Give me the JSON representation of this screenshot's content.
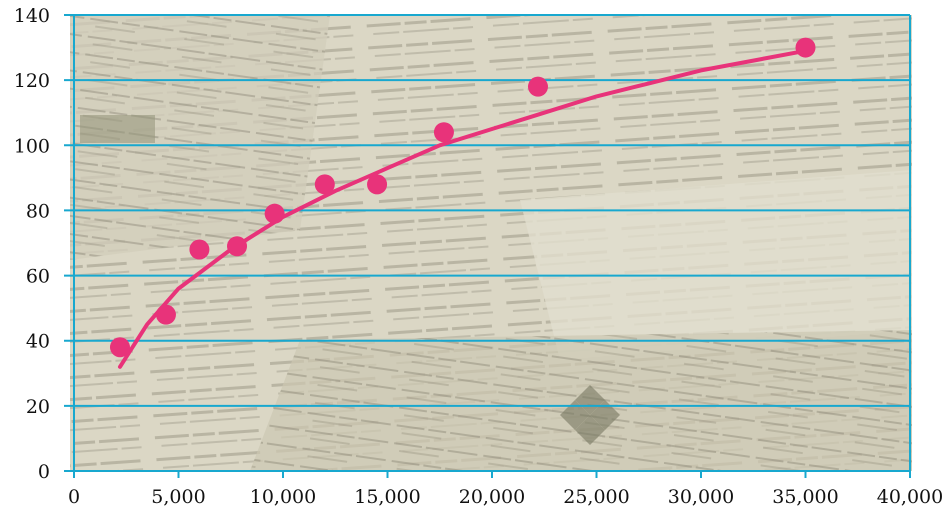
{
  "chart_data": {
    "type": "scatter",
    "title": "",
    "xlabel": "",
    "ylabel": "",
    "x_ticks": [
      "0",
      "5,000",
      "10,000",
      "15,000",
      "20,000",
      "25,000",
      "30,000",
      "35,000",
      "40,000"
    ],
    "y_ticks": [
      "0",
      "20",
      "40",
      "60",
      "80",
      "100",
      "120",
      "140"
    ],
    "xlim": [
      0,
      40000
    ],
    "ylim": [
      0,
      140
    ],
    "grid": "horizontal",
    "background": "collage of torn Hebrew newspaper clippings",
    "series": [
      {
        "type": "scatter",
        "color": "#e8337a",
        "points": [
          {
            "x": 2200,
            "y": 38
          },
          {
            "x": 4400,
            "y": 48
          },
          {
            "x": 6000,
            "y": 68
          },
          {
            "x": 7800,
            "y": 69
          },
          {
            "x": 9600,
            "y": 79
          },
          {
            "x": 12000,
            "y": 88
          },
          {
            "x": 14500,
            "y": 88
          },
          {
            "x": 17700,
            "y": 104
          },
          {
            "x": 22200,
            "y": 118
          },
          {
            "x": 35000,
            "y": 130
          }
        ]
      },
      {
        "type": "trendline",
        "color": "#e8337a",
        "model": "logarithmic",
        "points": [
          {
            "x": 2200,
            "y": 32
          },
          {
            "x": 3500,
            "y": 45
          },
          {
            "x": 5000,
            "y": 56
          },
          {
            "x": 7500,
            "y": 68
          },
          {
            "x": 10000,
            "y": 78
          },
          {
            "x": 12500,
            "y": 86
          },
          {
            "x": 15000,
            "y": 93
          },
          {
            "x": 17500,
            "y": 100
          },
          {
            "x": 20000,
            "y": 105
          },
          {
            "x": 22500,
            "y": 110
          },
          {
            "x": 25000,
            "y": 115
          },
          {
            "x": 27500,
            "y": 119
          },
          {
            "x": 30000,
            "y": 123
          },
          {
            "x": 32500,
            "y": 126
          },
          {
            "x": 35000,
            "y": 129
          }
        ]
      }
    ],
    "colors": {
      "grid": "#18a8cf",
      "axis": "#18a8cf",
      "marker": "#e8337a",
      "trendline": "#e8337a"
    }
  }
}
